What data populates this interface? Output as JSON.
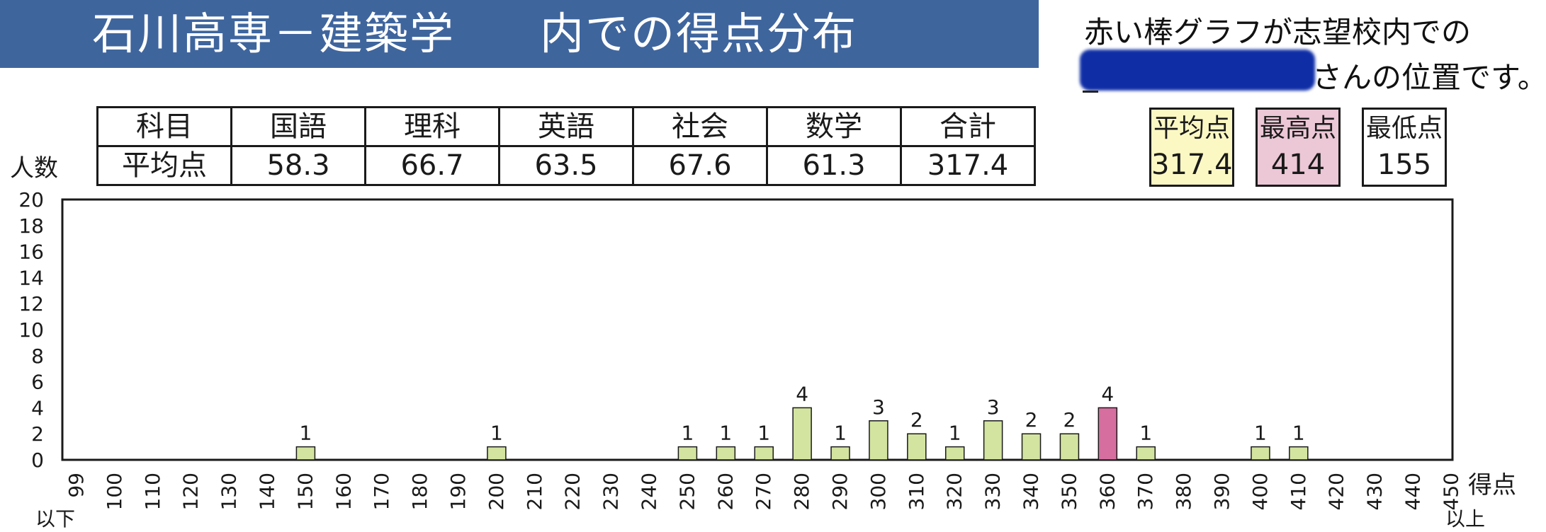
{
  "header": {
    "title_school": "石川高専－建築学",
    "title_rest": "内での得点分布"
  },
  "note": {
    "line1": "赤い棒グラフが志望校内での",
    "line2": "さんの位置です。"
  },
  "table": {
    "row_headers": [
      "科目",
      "平均点"
    ],
    "subjects": [
      "国語",
      "理科",
      "英語",
      "社会",
      "数学",
      "合計"
    ],
    "averages": [
      "58.3",
      "66.7",
      "63.5",
      "67.6",
      "61.3",
      "317.4"
    ]
  },
  "stats": {
    "avg_label": "平均点",
    "avg_value": "317.4",
    "max_label": "最高点",
    "max_value": "414",
    "min_label": "最低点",
    "min_value": "155"
  },
  "colors": {
    "header_bg": "#3f659d",
    "bar_fill": "#d3e4a0",
    "highlight_fill": "#d66e9f",
    "avg_box": "#fcf8c4",
    "max_box": "#ecc7d6"
  },
  "chart_data": {
    "type": "bar",
    "ylabel": "人数",
    "xlabel": "得点",
    "below_label": "以下",
    "above_label": "以上",
    "ylim": [
      0,
      20
    ],
    "yticks": [
      "0",
      "2",
      "4",
      "6",
      "8",
      "10",
      "12",
      "14",
      "16",
      "18",
      "20"
    ],
    "categories": [
      "99",
      "100",
      "110",
      "120",
      "130",
      "140",
      "150",
      "160",
      "170",
      "180",
      "190",
      "200",
      "210",
      "220",
      "230",
      "240",
      "250",
      "260",
      "270",
      "280",
      "290",
      "300",
      "310",
      "320",
      "330",
      "340",
      "350",
      "360",
      "370",
      "380",
      "390",
      "400",
      "410",
      "420",
      "430",
      "440",
      "450"
    ],
    "values": [
      0,
      0,
      0,
      0,
      0,
      0,
      1,
      0,
      0,
      0,
      0,
      1,
      0,
      0,
      0,
      0,
      1,
      1,
      1,
      4,
      1,
      3,
      2,
      1,
      3,
      2,
      2,
      4,
      1,
      0,
      0,
      1,
      1,
      0,
      0,
      0,
      0
    ],
    "highlight_category": "360"
  }
}
